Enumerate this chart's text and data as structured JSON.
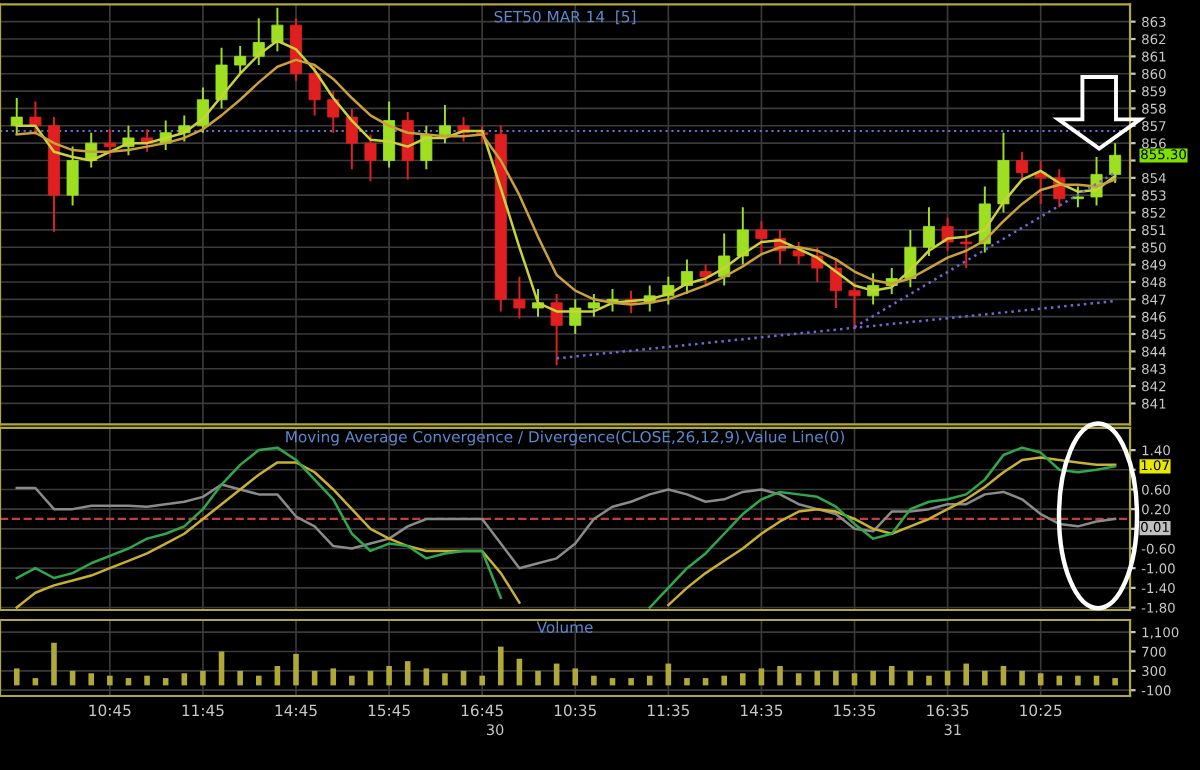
{
  "chart_data": [
    {
      "type": "candlestick",
      "title": "SET50 MAR 14  [5]",
      "categories": [
        null,
        null,
        null,
        null,
        null,
        null,
        null,
        null,
        null,
        null,
        null,
        null,
        null,
        null,
        null,
        null,
        null,
        null,
        null,
        null,
        null,
        null,
        null,
        null,
        null,
        null,
        null,
        null,
        null,
        null,
        null,
        null,
        null,
        null,
        null,
        null,
        null,
        null,
        null,
        null,
        null,
        null,
        null,
        null,
        null,
        null,
        null,
        null,
        null,
        null,
        null,
        null,
        null,
        null,
        null,
        null,
        null,
        null,
        null,
        null
      ],
      "ohlc": [
        [
          857.0,
          858.6,
          856.5,
          857.5
        ],
        [
          857.5,
          858.4,
          856.5,
          857.0
        ],
        [
          857.0,
          857.5,
          850.9,
          853.0
        ],
        [
          853.0,
          855.8,
          852.4,
          855.0
        ],
        [
          855.0,
          856.6,
          854.6,
          856.0
        ],
        [
          856.0,
          856.8,
          855.2,
          855.8
        ],
        [
          855.8,
          857.0,
          855.3,
          856.3
        ],
        [
          856.3,
          856.8,
          855.5,
          856.0
        ],
        [
          856.0,
          857.3,
          855.6,
          856.6
        ],
        [
          856.6,
          857.6,
          856.1,
          857.0
        ],
        [
          857.0,
          859.2,
          856.6,
          858.5
        ],
        [
          858.5,
          861.5,
          858.0,
          860.5
        ],
        [
          860.5,
          861.6,
          860.0,
          861.0
        ],
        [
          861.0,
          863.2,
          860.5,
          861.8
        ],
        [
          861.8,
          863.8,
          861.3,
          862.8
        ],
        [
          862.8,
          863.2,
          859.6,
          860.0
        ],
        [
          860.0,
          860.5,
          857.6,
          858.5
        ],
        [
          858.5,
          859.0,
          856.6,
          857.5
        ],
        [
          857.5,
          858.0,
          854.5,
          856.0
        ],
        [
          856.0,
          856.5,
          853.8,
          855.0
        ],
        [
          855.0,
          858.4,
          854.6,
          857.3
        ],
        [
          857.3,
          857.8,
          853.9,
          855.0
        ],
        [
          855.0,
          857.0,
          854.5,
          856.5
        ],
        [
          856.5,
          858.2,
          856.0,
          857.0
        ],
        [
          857.0,
          857.5,
          856.1,
          856.6
        ],
        [
          856.6,
          857.0,
          856.0,
          856.5
        ],
        [
          856.5,
          857.0,
          846.3,
          847.0
        ],
        [
          847.0,
          848.3,
          845.9,
          846.5
        ],
        [
          846.5,
          847.6,
          846.0,
          846.8
        ],
        [
          846.8,
          847.3,
          843.2,
          845.5
        ],
        [
          845.5,
          847.0,
          845.0,
          846.5
        ],
        [
          846.5,
          847.3,
          846.0,
          846.8
        ],
        [
          846.8,
          847.6,
          846.3,
          847.0
        ],
        [
          847.0,
          847.5,
          846.2,
          846.8
        ],
        [
          846.8,
          847.8,
          846.3,
          847.2
        ],
        [
          847.2,
          848.3,
          846.7,
          847.8
        ],
        [
          847.8,
          849.3,
          847.3,
          848.6
        ],
        [
          848.6,
          849.0,
          847.8,
          848.3
        ],
        [
          848.3,
          850.8,
          847.8,
          849.5
        ],
        [
          849.5,
          852.3,
          849.0,
          851.0
        ],
        [
          851.0,
          851.5,
          849.6,
          850.5
        ],
        [
          850.5,
          851.0,
          849.0,
          849.8
        ],
        [
          849.8,
          850.3,
          849.0,
          849.5
        ],
        [
          849.5,
          850.0,
          848.0,
          848.8
        ],
        [
          848.8,
          849.3,
          846.5,
          847.5
        ],
        [
          847.5,
          848.0,
          845.4,
          847.2
        ],
        [
          847.2,
          848.5,
          846.7,
          847.8
        ],
        [
          847.8,
          848.8,
          847.3,
          848.2
        ],
        [
          848.2,
          851.0,
          847.7,
          850.0
        ],
        [
          850.0,
          852.3,
          849.5,
          851.2
        ],
        [
          851.2,
          851.7,
          849.8,
          850.3
        ],
        [
          850.3,
          851.0,
          848.8,
          850.2
        ],
        [
          850.2,
          853.5,
          849.7,
          852.5
        ],
        [
          852.5,
          856.6,
          852.0,
          855.0
        ],
        [
          855.0,
          855.5,
          853.8,
          854.3
        ],
        [
          854.3,
          855.0,
          852.5,
          854.0
        ],
        [
          854.0,
          854.5,
          852.3,
          852.8
        ],
        [
          852.8,
          853.5,
          852.3,
          852.9
        ],
        [
          852.9,
          855.2,
          852.4,
          854.2
        ],
        [
          854.2,
          856.0,
          853.7,
          855.3
        ]
      ],
      "colors": [
        "#9ee021",
        "#e02020",
        "#e02020",
        "#9ee021",
        "#9ee021",
        "#e02020",
        "#9ee021",
        "#e02020",
        "#9ee021",
        "#9ee021",
        "#9ee021",
        "#9ee021",
        "#9ee021",
        "#9ee021",
        "#9ee021",
        "#e02020",
        "#e02020",
        "#e02020",
        "#e02020",
        "#e02020",
        "#9ee021",
        "#e02020",
        "#9ee021",
        "#9ee021",
        "#e02020",
        "#e02020",
        "#e02020",
        "#e02020",
        "#9ee021",
        "#e02020",
        "#9ee021",
        "#9ee021",
        "#9ee021",
        "#e02020",
        "#9ee021",
        "#9ee021",
        "#9ee021",
        "#e02020",
        "#9ee021",
        "#9ee021",
        "#e02020",
        "#e02020",
        "#e02020",
        "#e02020",
        "#e02020",
        "#e02020",
        "#9ee021",
        "#9ee021",
        "#9ee021",
        "#9ee021",
        "#e02020",
        "#e02020",
        "#9ee021",
        "#9ee021",
        "#e02020",
        "#e02020",
        "#e02020",
        "#9ee021",
        "#9ee021",
        "#9ee021"
      ],
      "series": [
        {
          "type": "line",
          "color": "#c8d23c",
          "values": [
            857.0,
            857.0,
            855.5,
            855.2,
            855.0,
            855.5,
            856.0,
            856.0,
            856.3,
            856.6,
            857.4,
            858.7,
            860.0,
            861.1,
            861.9,
            861.4,
            860.2,
            858.6,
            857.3,
            856.2,
            856.1,
            855.8,
            856.3,
            856.3,
            856.7,
            856.7,
            853.4,
            850.0,
            846.8,
            846.3,
            846.3,
            846.3,
            846.8,
            846.9,
            847.0,
            847.3,
            847.9,
            848.2,
            848.8,
            849.6,
            850.3,
            850.4,
            849.9,
            849.4,
            848.6,
            847.8,
            847.5,
            847.7,
            848.7,
            849.8,
            850.5,
            850.6,
            851.0,
            852.6,
            853.9,
            854.4,
            853.7,
            853.2,
            853.3,
            854.1
          ]
        },
        {
          "type": "line",
          "color": "#c8a03c",
          "values": [
            856.5,
            856.6,
            856.0,
            855.6,
            855.5,
            855.5,
            855.6,
            855.8,
            856.0,
            856.3,
            856.8,
            857.6,
            858.5,
            859.5,
            860.4,
            860.8,
            860.5,
            859.7,
            858.6,
            857.6,
            857.0,
            856.6,
            856.5,
            856.4,
            856.4,
            856.5,
            855.0,
            853.0,
            850.6,
            848.4,
            847.5,
            847.0,
            846.8,
            846.7,
            846.8,
            847.0,
            847.4,
            847.8,
            848.3,
            848.9,
            849.6,
            850.0,
            850.0,
            849.8,
            849.3,
            848.6,
            848.1,
            847.9,
            848.2,
            848.8,
            849.4,
            849.8,
            850.4,
            851.5,
            852.5,
            853.3,
            853.6,
            853.6,
            853.5,
            853.9
          ]
        },
        {
          "type": "line",
          "color": "#6a6ad0",
          "line_style": "dotted",
          "values": [
            null,
            null,
            null,
            null,
            null,
            null,
            null,
            null,
            null,
            null,
            null,
            null,
            null,
            null,
            null,
            null,
            null,
            null,
            null,
            null,
            null,
            null,
            null,
            null,
            null,
            null,
            null,
            null,
            null,
            843.6,
            null,
            null,
            null,
            null,
            null,
            null,
            null,
            null,
            null,
            null,
            null,
            null,
            null,
            null,
            null,
            null,
            null,
            null,
            null,
            null,
            null,
            null,
            null,
            null,
            null,
            null,
            null,
            null,
            null,
            846.9
          ]
        },
        {
          "type": "line",
          "color": "#6a6ad0",
          "line_style": "dotted",
          "values": [
            null,
            null,
            null,
            null,
            null,
            null,
            null,
            null,
            null,
            null,
            null,
            null,
            null,
            null,
            null,
            null,
            null,
            null,
            null,
            null,
            null,
            null,
            null,
            null,
            null,
            null,
            null,
            null,
            null,
            null,
            null,
            null,
            null,
            null,
            null,
            null,
            null,
            null,
            null,
            null,
            null,
            null,
            null,
            null,
            null,
            845.4,
            null,
            null,
            null,
            null,
            null,
            null,
            null,
            null,
            null,
            null,
            null,
            null,
            null,
            854.3
          ]
        }
      ],
      "ref_lines": [
        {
          "axis": "y",
          "value": 856.7,
          "color": "#6a6ad0",
          "line_style": "dotted"
        }
      ],
      "annotations": [
        "855.30"
      ],
      "ylim": [
        839.8,
        864.0
      ],
      "yticks": [
        841,
        842,
        843,
        844,
        845,
        846,
        847,
        848,
        849,
        850,
        851,
        852,
        853,
        854,
        {
          "value": 855,
          "label": null
        },
        856,
        857,
        858,
        859,
        860,
        861,
        862,
        863
      ],
      "grid": true,
      "tick_labels": "y"
    },
    {
      "type": "line",
      "title": "Moving Average Convergence / Divergence(CLOSE,26,12,9),Value Line(0)",
      "categories": [
        null,
        null,
        null,
        null,
        null,
        null,
        null,
        null,
        null,
        null,
        null,
        null,
        null,
        null,
        null,
        null,
        null,
        null,
        null,
        null,
        null,
        null,
        null,
        null,
        null,
        null,
        null,
        null,
        null,
        null,
        null,
        null,
        null,
        null,
        null,
        null,
        null,
        null,
        null,
        null,
        null,
        null,
        null,
        null,
        null,
        null,
        null,
        null,
        null,
        null,
        null,
        null,
        null,
        null,
        null,
        null,
        null,
        null,
        null,
        null
      ],
      "series": [
        {
          "color": "#8a8a8a",
          "values": [
            0.63,
            0.63,
            0.2,
            0.2,
            0.27,
            0.27,
            0.27,
            0.25,
            0.3,
            0.35,
            0.45,
            0.7,
            0.6,
            0.5,
            0.5,
            0.05,
            -0.15,
            -0.55,
            -0.6,
            -0.5,
            -0.4,
            -0.15,
            0.0,
            0.0,
            0.0,
            0.0,
            -0.5,
            -1.0,
            -0.9,
            -0.8,
            -0.5,
            0.0,
            0.25,
            0.35,
            0.5,
            0.6,
            0.5,
            0.35,
            0.4,
            0.55,
            0.6,
            0.5,
            0.3,
            0.2,
            0.1,
            -0.2,
            -0.25,
            0.15,
            0.15,
            0.2,
            0.3,
            0.3,
            0.5,
            0.55,
            0.4,
            0.1,
            -0.1,
            -0.15,
            -0.05,
            0.0
          ]
        },
        {
          "color": "#c8b030",
          "values": [
            -1.8,
            -1.5,
            -1.35,
            -1.25,
            -1.15,
            -1.0,
            -0.85,
            -0.7,
            -0.5,
            -0.3,
            0.0,
            0.3,
            0.6,
            0.9,
            1.15,
            1.15,
            0.95,
            0.6,
            0.2,
            -0.2,
            -0.4,
            -0.55,
            -0.65,
            -0.65,
            -0.65,
            -0.65,
            -1.1,
            -1.7,
            null,
            null,
            null,
            null,
            null,
            null,
            null,
            -1.75,
            -1.4,
            -1.1,
            -0.85,
            -0.6,
            -0.3,
            -0.05,
            0.15,
            0.2,
            0.15,
            0.0,
            -0.2,
            -0.3,
            -0.15,
            0.0,
            0.2,
            0.4,
            0.65,
            0.95,
            1.2,
            1.25,
            1.2,
            1.15,
            1.1,
            1.1
          ]
        },
        {
          "color": "#2ea84a",
          "values": [
            -1.2,
            -1.0,
            -1.2,
            -1.1,
            -0.9,
            -0.75,
            -0.6,
            -0.4,
            -0.3,
            -0.15,
            0.2,
            0.7,
            1.1,
            1.4,
            1.45,
            1.2,
            0.8,
            0.4,
            -0.3,
            -0.65,
            -0.5,
            -0.55,
            -0.8,
            -0.7,
            -0.65,
            -0.65,
            -1.6,
            null,
            null,
            null,
            null,
            null,
            null,
            null,
            -1.8,
            -1.4,
            -1.0,
            -0.7,
            -0.3,
            0.1,
            0.4,
            0.55,
            0.5,
            0.45,
            0.25,
            -0.1,
            -0.4,
            -0.3,
            0.2,
            0.35,
            0.4,
            0.5,
            0.8,
            1.3,
            1.45,
            1.35,
            1.0,
            0.95,
            1.0,
            1.07
          ]
        }
      ],
      "ref_lines": [
        {
          "axis": "y",
          "value": 0,
          "color": "#c04040",
          "line_style": "dashed"
        }
      ],
      "annotations": [
        "1.07",
        "0.01"
      ],
      "ylim": [
        -1.85,
        1.85
      ],
      "yticks": [
        {
          "value": 1.4,
          "label": "1.40"
        },
        {
          "value": 1.0,
          "label": null
        },
        {
          "value": 0.6,
          "label": "0.60"
        },
        {
          "value": 0.2,
          "label": "0.20"
        },
        {
          "value": -0.2,
          "label": null
        },
        {
          "value": -0.6,
          "label": "-0.60"
        },
        {
          "value": -1.0,
          "label": "-1.00"
        },
        {
          "value": -1.4,
          "label": "-1.40"
        },
        {
          "value": -1.8,
          "label": "-1.80"
        }
      ],
      "grid": true,
      "tick_labels": "y"
    },
    {
      "type": "bar",
      "title": "Volume",
      "color": "#b0a838",
      "categories": [
        null,
        null,
        null,
        null,
        null,
        "10:45",
        null,
        null,
        null,
        null,
        "11:45",
        null,
        null,
        null,
        null,
        "14:45",
        null,
        null,
        null,
        null,
        "15:45",
        null,
        null,
        null,
        null,
        "16:45",
        null,
        null,
        null,
        null,
        "10:35",
        null,
        null,
        null,
        null,
        "11:35",
        null,
        null,
        null,
        null,
        "14:35",
        null,
        null,
        null,
        null,
        "15:35",
        null,
        null,
        null,
        null,
        "16:35",
        null,
        null,
        null,
        null,
        "10:25",
        null,
        null,
        null,
        null
      ],
      "values": [
        350,
        150,
        880,
        300,
        250,
        200,
        150,
        200,
        150,
        250,
        300,
        700,
        300,
        200,
        400,
        650,
        300,
        350,
        200,
        300,
        400,
        500,
        350,
        250,
        300,
        200,
        800,
        550,
        300,
        450,
        350,
        200,
        150,
        150,
        200,
        450,
        150,
        150,
        200,
        250,
        350,
        400,
        250,
        300,
        300,
        250,
        300,
        400,
        300,
        200,
        300,
        450,
        300,
        400,
        300,
        250,
        200,
        200,
        200,
        150
      ],
      "annotations": [
        "30",
        "31"
      ],
      "ylim": [
        -220,
        1350
      ],
      "yticks": [
        {
          "value": 1100,
          "label": "1,100"
        },
        {
          "value": 700,
          "label": "700"
        },
        {
          "value": 300,
          "label": "300"
        },
        {
          "value": -100,
          "label": "-100"
        }
      ],
      "grid": true
    }
  ]
}
